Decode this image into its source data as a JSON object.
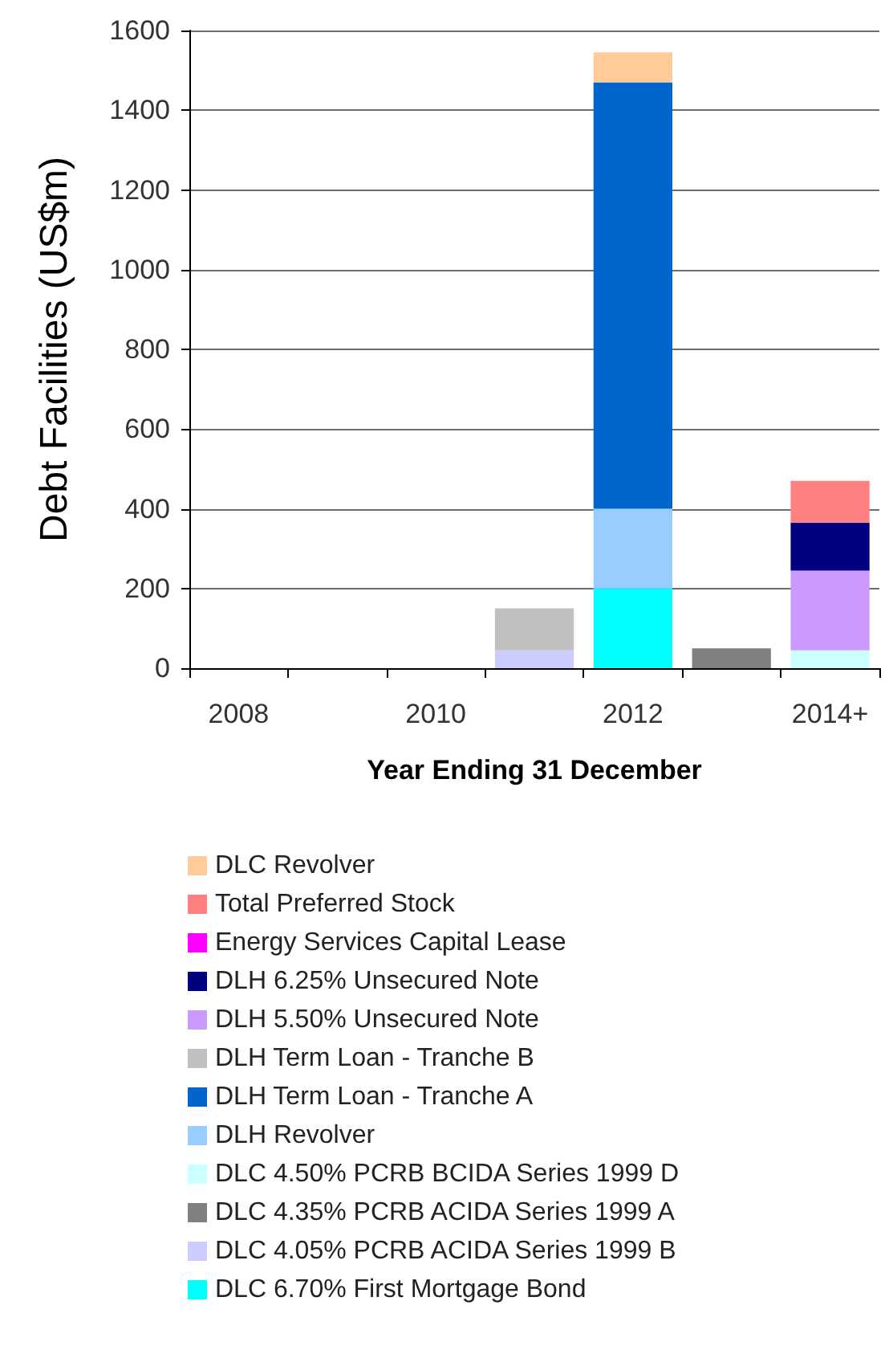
{
  "chart_data": {
    "type": "bar",
    "stacked": true,
    "ylabel": "Debt Facilities (US$m)",
    "xlabel": "Year Ending 31 December",
    "categories": [
      "2008",
      null,
      "2010",
      null,
      "2012",
      null,
      "2014+"
    ],
    "ylim": [
      0,
      1600
    ],
    "yticks": [
      0,
      200,
      400,
      600,
      800,
      1000,
      1200,
      1400,
      1600
    ],
    "grid": "y",
    "legend": "bottom left",
    "series": [
      {
        "name": "DLC 6.70% First Mortgage Bond",
        "color": "#00ffff",
        "values": [
          null,
          null,
          null,
          null,
          200,
          null,
          null
        ]
      },
      {
        "name": "DLC 4.05% PCRB ACIDA Series 1999 B",
        "color": "#ccccff",
        "values": [
          null,
          null,
          null,
          45,
          null,
          null,
          null
        ]
      },
      {
        "name": "DLC 4.35% PCRB ACIDA Series 1999 A",
        "color": "#808080",
        "values": [
          null,
          null,
          null,
          null,
          null,
          50,
          null
        ]
      },
      {
        "name": "DLC 4.50% PCRB BCIDA Series 1999 D",
        "color": "#ccffff",
        "values": [
          null,
          null,
          null,
          null,
          null,
          null,
          45
        ]
      },
      {
        "name": "DLH Revolver",
        "color": "#99ccff",
        "values": [
          null,
          null,
          null,
          null,
          200,
          null,
          null
        ]
      },
      {
        "name": "DLH Term Loan - Tranche A",
        "color": "#0066cc",
        "values": [
          null,
          null,
          null,
          null,
          1070,
          null,
          null
        ]
      },
      {
        "name": "DLH Term Loan - Tranche B",
        "color": "#c0c0c0",
        "values": [
          null,
          null,
          null,
          105,
          null,
          null,
          null
        ]
      },
      {
        "name": "DLH 5.50% Unsecured Note",
        "color": "#cc99ff",
        "values": [
          null,
          null,
          null,
          null,
          null,
          null,
          200
        ]
      },
      {
        "name": "DLH 6.25% Unsecured Note",
        "color": "#000080",
        "values": [
          null,
          null,
          null,
          null,
          null,
          null,
          120
        ]
      },
      {
        "name": "Energy Services Capital Lease",
        "color": "#ff00ff",
        "values": [
          null,
          null,
          null,
          null,
          null,
          null,
          null
        ]
      },
      {
        "name": "Total Preferred Stock",
        "color": "#ff8080",
        "values": [
          null,
          null,
          null,
          null,
          null,
          null,
          105
        ]
      },
      {
        "name": "DLC Revolver",
        "color": "#ffcc99",
        "values": [
          null,
          null,
          null,
          null,
          75,
          null,
          null
        ]
      }
    ]
  }
}
